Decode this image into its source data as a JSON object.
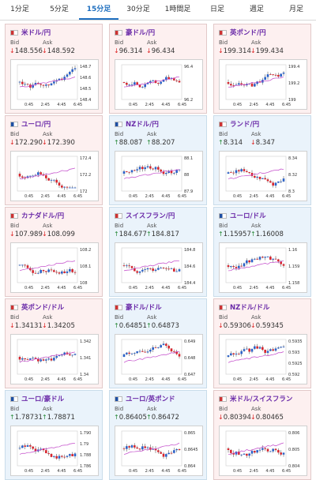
{
  "tabs": [
    "1分足",
    "5分足",
    "15分足",
    "30分足",
    "1時間足",
    "日足",
    "週足",
    "月足"
  ],
  "active_tab": 2,
  "labels": {
    "bid": "Bid",
    "ask": "Ask"
  },
  "cards": [
    {
      "pair": "米ドル/円",
      "bid": "148.556",
      "ask": "148.592",
      "bid_dir": "down",
      "ask_dir": "down",
      "bg": "pink",
      "y_ticks": [
        "148.7",
        "148.6",
        "148.5",
        "148.4"
      ],
      "x_ticks": [
        "0:45",
        "2:45",
        "4:45",
        "6:45"
      ]
    },
    {
      "pair": "豪ドル/円",
      "bid": "96.314",
      "ask": "96.434",
      "bid_dir": "down",
      "ask_dir": "down",
      "bg": "pink",
      "y_ticks": [
        "96.4",
        "96.2"
      ],
      "x_ticks": [
        "0:45",
        "2:45",
        "4:45",
        "6:45"
      ]
    },
    {
      "pair": "英ポンド/円",
      "bid": "199.314",
      "ask": "199.434",
      "bid_dir": "down",
      "ask_dir": "down",
      "bg": "pink",
      "y_ticks": [
        "199.4",
        "199.2",
        "199"
      ],
      "x_ticks": [
        "0:45",
        "2:45",
        "4:45",
        "6:45"
      ]
    },
    {
      "pair": "ユーロ/円",
      "bid": "172.290",
      "ask": "172.390",
      "bid_dir": "down",
      "ask_dir": "down",
      "bg": "pink",
      "y_ticks": [
        "172.4",
        "172.2",
        "172"
      ],
      "x_ticks": [
        "0:45",
        "2:45",
        "4:45",
        "6:45"
      ]
    },
    {
      "pair": "NZドル/円",
      "bid": "88.087",
      "ask": "88.207",
      "bid_dir": "up",
      "ask_dir": "up",
      "bg": "blue",
      "y_ticks": [
        "88.1",
        "88",
        "87.9"
      ],
      "x_ticks": [
        "0:45",
        "2:45",
        "4:45",
        "6:45"
      ]
    },
    {
      "pair": "ランド/円",
      "bid": "8.314",
      "ask": "8.347",
      "bid_dir": "up",
      "ask_dir": "down",
      "bg": "blue",
      "y_ticks": [
        "8.34",
        "8.32",
        "8.3"
      ],
      "x_ticks": [
        "0:45",
        "2:45",
        "4:45",
        "6:45"
      ]
    },
    {
      "pair": "カナダドル/円",
      "bid": "107.989",
      "ask": "108.099",
      "bid_dir": "down",
      "ask_dir": "down",
      "bg": "pink",
      "y_ticks": [
        "108.2",
        "108.1",
        "108"
      ],
      "x_ticks": [
        "0:45",
        "2:45",
        "4:45",
        "6:45"
      ]
    },
    {
      "pair": "スイスフラン/円",
      "bid": "184.677",
      "ask": "184.817",
      "bid_dir": "up",
      "ask_dir": "up",
      "bg": "blue",
      "y_ticks": [
        "184.8",
        "184.6",
        "184.4"
      ],
      "x_ticks": [
        "0:45",
        "2:45",
        "4:45",
        "6:45"
      ]
    },
    {
      "pair": "ユーロ/ドル",
      "bid": "1.15957",
      "ask": "1.16008",
      "bid_dir": "up",
      "ask_dir": "up",
      "bg": "blue",
      "y_ticks": [
        "1.16",
        "1.159",
        "1.158"
      ],
      "x_ticks": [
        "0:45",
        "2:45",
        "4:45",
        "6:45"
      ]
    },
    {
      "pair": "英ポンド/ドル",
      "bid": "1.34131",
      "ask": "1.34205",
      "bid_dir": "down",
      "ask_dir": "down",
      "bg": "pink",
      "y_ticks": [
        "1.342",
        "1.341",
        "1.34"
      ],
      "x_ticks": [
        "0:45",
        "2:45",
        "4:45",
        "6:45"
      ]
    },
    {
      "pair": "豪ドル/ドル",
      "bid": "0.64851",
      "ask": "0.64873",
      "bid_dir": "up",
      "ask_dir": "up",
      "bg": "blue",
      "y_ticks": [
        "0.649",
        "0.648",
        "0.647"
      ],
      "x_ticks": [
        "0:45",
        "2:45",
        "4:45",
        "6:45"
      ]
    },
    {
      "pair": "NZドル/ドル",
      "bid": "0.59306",
      "ask": "0.59345",
      "bid_dir": "down",
      "ask_dir": "down",
      "bg": "pink",
      "y_ticks": [
        "0.5935",
        "0.593",
        "0.5925",
        "0.592"
      ],
      "x_ticks": [
        "0:45",
        "2:45",
        "4:45",
        "6:45"
      ]
    },
    {
      "pair": "ユーロ/豪ドル",
      "bid": "1.78731",
      "ask": "1.78871",
      "bid_dir": "up",
      "ask_dir": "up",
      "bg": "blue",
      "y_ticks": [
        "1.790",
        "1.79",
        "1.788",
        "1.786"
      ],
      "x_ticks": [
        "0:45",
        "2:45",
        "4:45",
        "6:45"
      ]
    },
    {
      "pair": "ユーロ/英ポンド",
      "bid": "0.86405",
      "ask": "0.86472",
      "bid_dir": "up",
      "ask_dir": "up",
      "bg": "blue",
      "y_ticks": [
        "0.865",
        "0.8645",
        "0.864"
      ],
      "x_ticks": [
        "0:45",
        "2:45",
        "4:45",
        "6:45"
      ]
    },
    {
      "pair": "米ドル/スイスフラン",
      "bid": "0.80394",
      "ask": "0.80465",
      "bid_dir": "down",
      "ask_dir": "down",
      "bg": "pink",
      "y_ticks": [
        "0.806",
        "0.805",
        "0.804"
      ],
      "x_ticks": [
        "0:45",
        "2:45",
        "4:45",
        "6:45"
      ]
    }
  ]
}
